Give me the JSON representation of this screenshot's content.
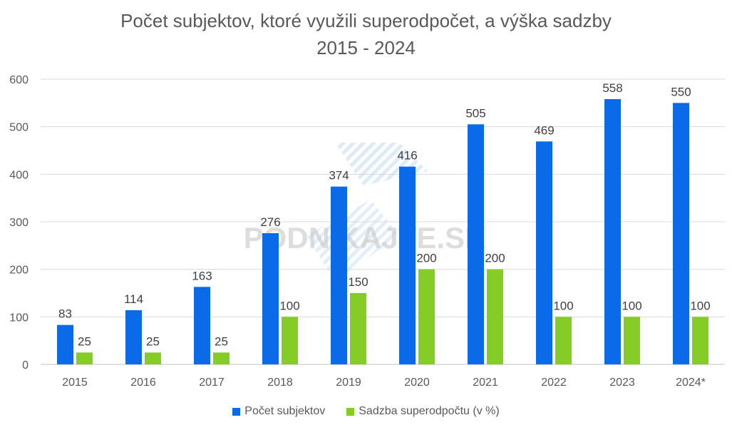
{
  "colors": {
    "series_1": "#0a6ae8",
    "series_2": "#84cc26",
    "grid": "#d9d9d9",
    "text": "#595959"
  },
  "watermark": "PODNIKAJTE.SK",
  "chart_data": {
    "type": "bar",
    "title_line1": "Počet subjektov, ktoré využili superodpočet, a výška sadzby",
    "title_line2": "2015 - 2024",
    "categories": [
      "2015",
      "2016",
      "2017",
      "2018",
      "2019",
      "2020",
      "2021",
      "2022",
      "2023",
      "2024*"
    ],
    "series": [
      {
        "name": "Počet subjektov",
        "values": [
          83,
          114,
          163,
          276,
          374,
          416,
          505,
          469,
          558,
          550
        ]
      },
      {
        "name": "Sadzba superodpočtu (v %)",
        "values": [
          25,
          25,
          25,
          100,
          150,
          200,
          200,
          100,
          100,
          100
        ]
      }
    ],
    "ylim": [
      0,
      600
    ],
    "yticks": [
      0,
      100,
      200,
      300,
      400,
      500,
      600
    ],
    "grid": true,
    "legend_position": "bottom"
  }
}
